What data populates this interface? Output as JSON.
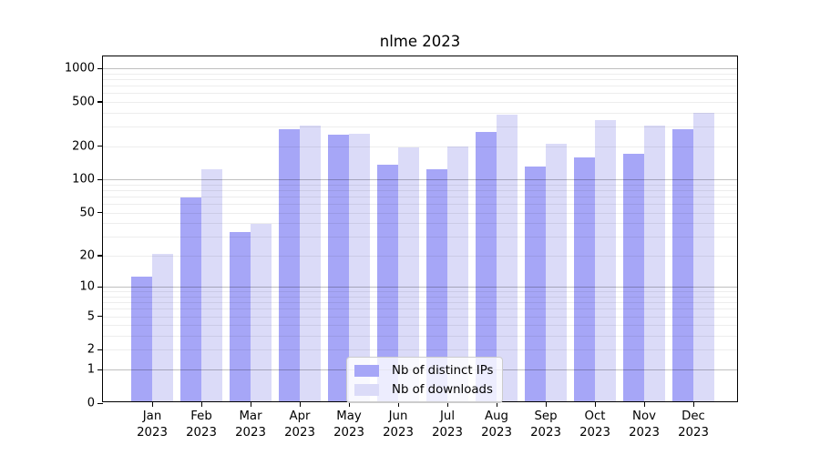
{
  "title": "nlme 2023",
  "legend": {
    "items": [
      {
        "label": "Nb of distinct IPs",
        "color": "#a6a6f7"
      },
      {
        "label": "Nb of downloads",
        "color": "#dbdbf8"
      }
    ]
  },
  "chart_data": {
    "type": "bar",
    "title": "nlme 2023",
    "xlabel": "",
    "ylabel": "",
    "scale": "log10(1+y)",
    "grid": "horizontal",
    "legend_position": "bottom-center-inside",
    "categories": [
      "Jan",
      "Feb",
      "Mar",
      "Apr",
      "May",
      "Jun",
      "Jul",
      "Aug",
      "Sep",
      "Oct",
      "Nov",
      "Dec"
    ],
    "year": "2023",
    "series": [
      {
        "name": "Nb of distinct IPs",
        "color": "#a6a6f7",
        "values": [
          12,
          66,
          32,
          272,
          242,
          132,
          118,
          260,
          125,
          152,
          165,
          275
        ]
      },
      {
        "name": "Nb of downloads",
        "color": "#dbdbf8",
        "values": [
          20,
          120,
          38,
          295,
          250,
          188,
          192,
          372,
          201,
          330,
          292,
          385
        ]
      }
    ],
    "ylim": [
      0,
      1000
    ],
    "y_ticks": [
      0,
      1,
      2,
      5,
      10,
      20,
      50,
      100,
      200,
      500,
      1000
    ],
    "grid_major": [
      1,
      10,
      100,
      1000
    ],
    "grid_minor": [
      2,
      3,
      4,
      5,
      6,
      7,
      8,
      9,
      20,
      30,
      40,
      50,
      60,
      70,
      80,
      90,
      200,
      300,
      400,
      500,
      600,
      700,
      800,
      900
    ]
  }
}
